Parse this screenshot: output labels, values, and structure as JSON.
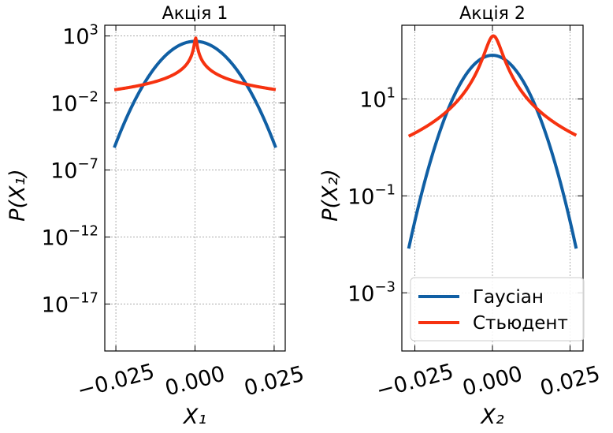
{
  "chart_data": [
    {
      "type": "line",
      "title": "Акція 1",
      "xlabel": "X₁",
      "ylabel": "P(X₁)",
      "yscale": "log",
      "xlim": [
        -0.0285,
        0.0285
      ],
      "ylim_exp": [
        -20.5,
        3.8
      ],
      "xticks": [
        -0.025,
        0.0,
        0.025
      ],
      "xtick_labels": [
        "−0.025",
        "0.000",
        "0.025"
      ],
      "yticks_exp": [
        3,
        -2,
        -7,
        -12,
        -17
      ],
      "ytick_labels": [
        {
          "base": "10",
          "exp": "3"
        },
        {
          "base": "10",
          "exp": "−2"
        },
        {
          "base": "10",
          "exp": "−7"
        },
        {
          "base": "10",
          "exp": "−12"
        },
        {
          "base": "10",
          "exp": "−17"
        }
      ],
      "grid": true,
      "x_range": [
        -0.0255,
        0.0255
      ],
      "series": [
        {
          "name": "Гаусіан",
          "color": "#105fa4",
          "model": "gauss",
          "peak_log10": 2.6,
          "mean": 0.0,
          "sd": 0.00422
        },
        {
          "name": "Стьюдент",
          "color": "#f63210",
          "model": "cauchy",
          "peak_log10": 2.85,
          "center": 0.0002,
          "scale": 0.0003
        }
      ]
    },
    {
      "type": "line",
      "title": "Акція 2",
      "xlabel": "X₂",
      "ylabel": "P(X₂)",
      "yscale": "log",
      "xlim": [
        -0.0292,
        0.0292
      ],
      "ylim_exp": [
        -4.2,
        2.52
      ],
      "xticks": [
        -0.025,
        0.0,
        0.025
      ],
      "xtick_labels": [
        "−0.025",
        "0.000",
        "0.025"
      ],
      "yticks_exp": [
        1,
        -1,
        -3
      ],
      "ytick_labels": [
        {
          "base": "10",
          "exp": "1"
        },
        {
          "base": "10",
          "exp": "−1"
        },
        {
          "base": "10",
          "exp": "−3"
        }
      ],
      "grid": true,
      "x_range": [
        -0.027,
        0.027
      ],
      "series": [
        {
          "name": "Гаусіан",
          "color": "#105fa4",
          "model": "gauss",
          "peak_log10": 1.9,
          "mean": 0.0,
          "sd": 0.0063
        },
        {
          "name": "Стьюдент",
          "color": "#f63210",
          "model": "cauchy",
          "peak_log10": 2.3,
          "center": 0.0003,
          "scale": 0.00253
        }
      ],
      "legend": {
        "placement": "lower-right",
        "entries": [
          "Гаусіан",
          "Стьюдент"
        ]
      }
    }
  ]
}
